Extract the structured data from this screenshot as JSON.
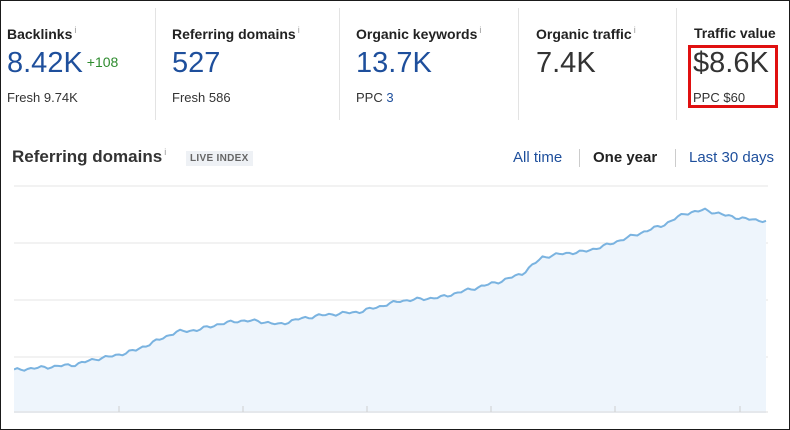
{
  "metrics": [
    {
      "label": "Backlinks",
      "value": "8.42K",
      "delta": "+108",
      "sub_prefix": "Fresh",
      "sub_value": "9.74K"
    },
    {
      "label": "Referring domains",
      "value": "527",
      "sub_prefix": "Fresh",
      "sub_value": "586"
    },
    {
      "label": "Organic keywords",
      "value": "13.7K",
      "sub_prefix": "PPC",
      "sub_value": "3"
    },
    {
      "label": "Organic traffic",
      "value": "7.4K"
    },
    {
      "label": "Traffic value",
      "value": "$8.6K",
      "sub_prefix": "PPC",
      "sub_value": "$60"
    }
  ],
  "info_glyph": "i",
  "chart_header": {
    "title": "Referring domains",
    "badge": "LIVE INDEX",
    "ranges": [
      "All time",
      "One year",
      "Last 30 days"
    ],
    "active_range": "One year"
  },
  "colors": {
    "accent": "#1e4f9c",
    "positive": "#2e8b2e",
    "highlight": "#e01010",
    "line": "#7ab3e0",
    "area": "#eef5fc"
  },
  "chart_data": {
    "type": "area",
    "title": "Referring domains",
    "xlabel": "",
    "ylabel": "",
    "grid": true,
    "y": [
      0.06,
      0.07,
      0.08,
      0.09,
      0.12,
      0.14,
      0.17,
      0.22,
      0.27,
      0.28,
      0.31,
      0.33,
      0.33,
      0.31,
      0.34,
      0.36,
      0.37,
      0.38,
      0.41,
      0.44,
      0.45,
      0.46,
      0.49,
      0.52,
      0.55,
      0.59,
      0.68,
      0.7,
      0.71,
      0.74,
      0.78,
      0.82,
      0.86,
      0.92,
      0.94,
      0.91,
      0.89,
      0.88
    ]
  }
}
